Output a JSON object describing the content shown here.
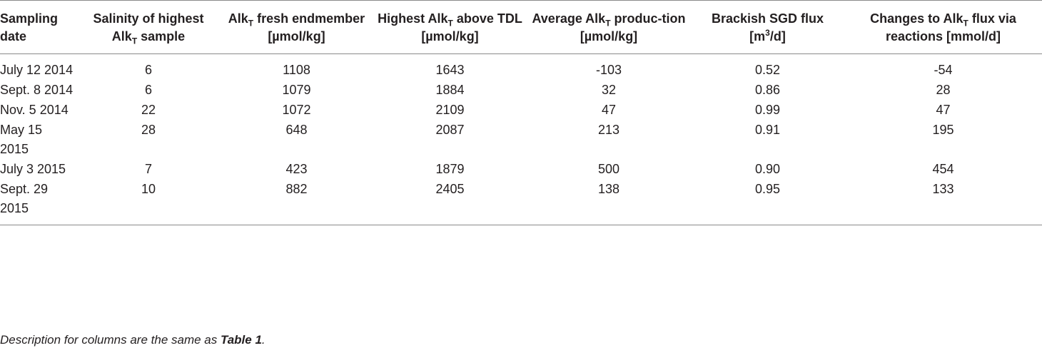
{
  "table": {
    "headers": [
      {
        "parts": [
          "Sampling date"
        ]
      },
      {
        "parts": [
          "Salinity of highest Alk",
          {
            "sub": "T"
          },
          " sample"
        ]
      },
      {
        "parts": [
          "Alk",
          {
            "sub": "T"
          },
          " fresh endmember [µmol/kg]"
        ]
      },
      {
        "parts": [
          "Highest Alk",
          {
            "sub": "T"
          },
          " above TDL [µmol/kg]"
        ]
      },
      {
        "parts": [
          "Average Alk",
          {
            "sub": "T"
          },
          " produc-tion [µmol/kg]"
        ]
      },
      {
        "parts": [
          "Brackish SGD flux [m",
          {
            "sup": "3"
          },
          "/d]"
        ]
      },
      {
        "parts": [
          "Changes to Alk",
          {
            "sub": "T"
          },
          " flux via reactions [mmol/d]"
        ]
      }
    ],
    "rows": [
      {
        "date": "July 12 2014",
        "salinity": "6",
        "fresh": "1108",
        "highest": "1643",
        "average": "-103",
        "sgd": "0.52",
        "changes": "-54"
      },
      {
        "date": "Sept. 8 2014",
        "salinity": "6",
        "fresh": "1079",
        "highest": "1884",
        "average": "32",
        "sgd": "0.86",
        "changes": "28"
      },
      {
        "date": "Nov. 5 2014",
        "salinity": "22",
        "fresh": "1072",
        "highest": "2109",
        "average": "47",
        "sgd": "0.99",
        "changes": "47"
      },
      {
        "date": "May 15 2015",
        "salinity": "28",
        "fresh": "648",
        "highest": "2087",
        "average": "213",
        "sgd": "0.91",
        "changes": "195"
      },
      {
        "date": "July 3 2015",
        "salinity": "7",
        "fresh": "423",
        "highest": "1879",
        "average": "500",
        "sgd": "0.90",
        "changes": "454"
      },
      {
        "date": "Sept. 29 2015",
        "salinity": "10",
        "fresh": "882",
        "highest": "2405",
        "average": "138",
        "sgd": "0.95",
        "changes": "133"
      }
    ]
  },
  "footnote": {
    "text": "Description for columns are the same as ",
    "ref": "Table 1",
    "end": "."
  }
}
